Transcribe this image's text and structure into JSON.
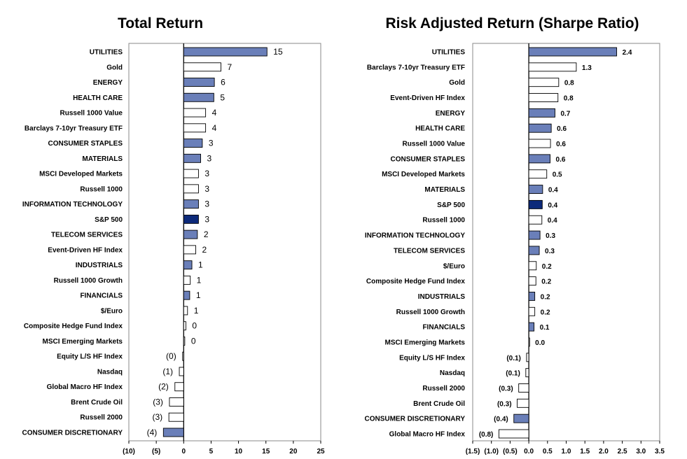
{
  "colors": {
    "sector": "#6a7fb9",
    "benchmark": "#0d2a7a",
    "other": "#ffffff",
    "bar_stroke": "#000000",
    "axis": "#000000"
  },
  "chart_data": [
    {
      "type": "bar",
      "orientation": "horizontal",
      "title": "Total Return",
      "xlim": [
        -10,
        25
      ],
      "xticks": [
        -10,
        -5,
        0,
        5,
        10,
        15,
        20,
        25
      ],
      "xtick_labels": [
        "(10)",
        "(5)",
        "0",
        "5",
        "10",
        "15",
        "20",
        "25"
      ],
      "categories": [
        "UTILITIES",
        "Gold",
        "ENERGY",
        "HEALTH CARE",
        "Russell 1000 Value",
        "Barclays 7-10yr Treasury ETF",
        "CONSUMER STAPLES",
        "MATERIALS",
        "MSCI Developed Markets",
        "Russell 1000",
        "INFORMATION TECHNOLOGY",
        "S&P 500",
        "TELECOM SERVICES",
        "Event-Driven HF Index",
        "INDUSTRIALS",
        "Russell 1000 Growth",
        "FINANCIALS",
        "$/Euro",
        "Composite Hedge Fund Index",
        "MSCI Emerging Markets",
        "Equity L/S HF Index",
        "Nasdaq",
        "Global Macro HF Index",
        "Brent Crude Oil",
        "Russell 2000",
        "CONSUMER DISCRETIONARY"
      ],
      "values": [
        15.2,
        6.8,
        5.6,
        5.5,
        4.0,
        4.0,
        3.4,
        3.1,
        2.7,
        2.7,
        2.7,
        2.7,
        2.5,
        2.2,
        1.5,
        1.2,
        1.1,
        0.7,
        0.4,
        0.2,
        -0.2,
        -0.8,
        -1.6,
        -2.6,
        -2.7,
        -3.7
      ],
      "value_labels": [
        "15",
        "7",
        "6",
        "5",
        "4",
        "4",
        "3",
        "3",
        "3",
        "3",
        "3",
        "3",
        "2",
        "2",
        "1",
        "1",
        "1",
        "1",
        "0",
        "0",
        "(0)",
        "(1)",
        "(2)",
        "(3)",
        "(3)",
        "(4)"
      ],
      "kinds": [
        "sector",
        "other",
        "sector",
        "sector",
        "other",
        "other",
        "sector",
        "sector",
        "other",
        "other",
        "sector",
        "benchmark",
        "sector",
        "other",
        "sector",
        "other",
        "sector",
        "other",
        "other",
        "other",
        "other",
        "other",
        "other",
        "other",
        "other",
        "sector"
      ]
    },
    {
      "type": "bar",
      "orientation": "horizontal",
      "title": "Risk Adjusted Return (Sharpe Ratio)",
      "xlim": [
        -1.5,
        3.5
      ],
      "xticks": [
        -1.5,
        -1.0,
        -0.5,
        0.0,
        0.5,
        1.0,
        1.5,
        2.0,
        2.5,
        3.0,
        3.5
      ],
      "xtick_labels": [
        "(1.5)",
        "(1.0)",
        "(0.5)",
        "0.0",
        "0.5",
        "1.0",
        "1.5",
        "2.0",
        "2.5",
        "3.0",
        "3.5"
      ],
      "categories": [
        "UTILITIES",
        "Barclays 7-10yr Treasury ETF",
        "Gold",
        "Event-Driven HF Index",
        "ENERGY",
        "HEALTH CARE",
        "Russell 1000 Value",
        "CONSUMER STAPLES",
        "MSCI Developed Markets",
        "MATERIALS",
        "S&P 500",
        "Russell 1000",
        "INFORMATION TECHNOLOGY",
        "TELECOM SERVICES",
        "$/Euro",
        "Composite Hedge Fund Index",
        "INDUSTRIALS",
        "Russell 1000 Growth",
        "FINANCIALS",
        "MSCI Emerging Markets",
        "Equity L/S HF Index",
        "Nasdaq",
        "Russell 2000",
        "Brent Crude Oil",
        "CONSUMER DISCRETIONARY",
        "Global Macro HF Index"
      ],
      "values": [
        2.35,
        1.27,
        0.8,
        0.78,
        0.7,
        0.6,
        0.58,
        0.57,
        0.48,
        0.37,
        0.36,
        0.35,
        0.3,
        0.28,
        0.2,
        0.19,
        0.16,
        0.16,
        0.14,
        0.02,
        -0.06,
        -0.08,
        -0.27,
        -0.31,
        -0.4,
        -0.8
      ],
      "value_labels": [
        "2.4",
        "1.3",
        "0.8",
        "0.8",
        "0.7",
        "0.6",
        "0.6",
        "0.6",
        "0.5",
        "0.4",
        "0.4",
        "0.4",
        "0.3",
        "0.3",
        "0.2",
        "0.2",
        "0.2",
        "0.2",
        "0.1",
        "0.0",
        "(0.1)",
        "(0.1)",
        "(0.3)",
        "(0.3)",
        "(0.4)",
        "(0.8)"
      ],
      "kinds": [
        "sector",
        "other",
        "other",
        "other",
        "sector",
        "sector",
        "other",
        "sector",
        "other",
        "sector",
        "benchmark",
        "other",
        "sector",
        "sector",
        "other",
        "other",
        "sector",
        "other",
        "sector",
        "other",
        "other",
        "other",
        "other",
        "other",
        "sector",
        "other"
      ]
    }
  ]
}
